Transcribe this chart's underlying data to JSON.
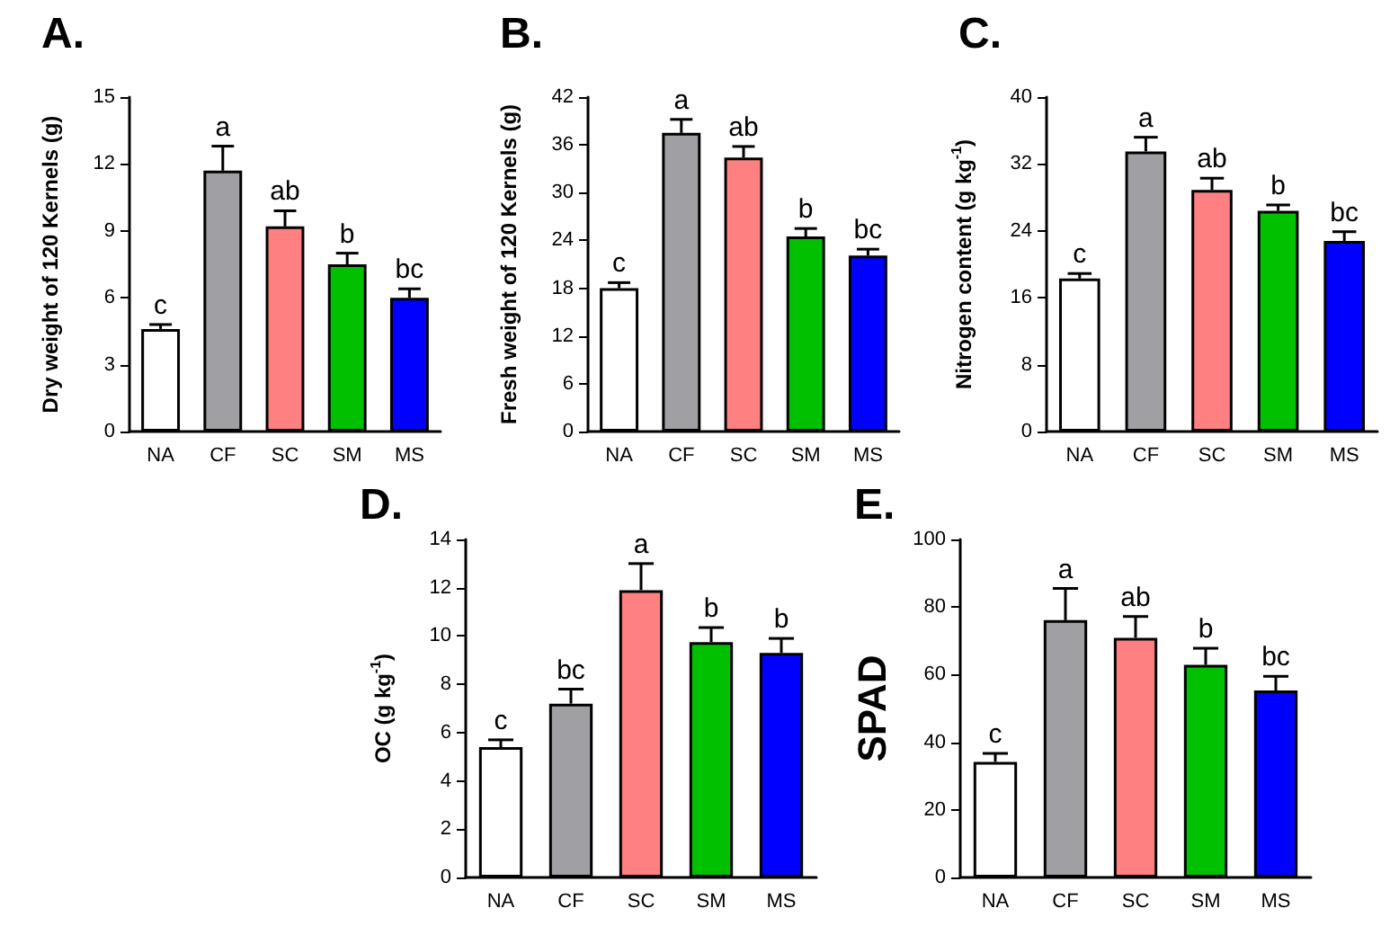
{
  "chart_data": [
    {
      "type": "bar",
      "title": "A.",
      "ylabel": "Dry weight of 120 Kernels (g)",
      "categories": [
        "NA",
        "CF",
        "SC",
        "SM",
        "MS"
      ],
      "values": [
        4.6,
        11.7,
        9.2,
        7.5,
        6.0
      ],
      "colors": [
        "#ffffff",
        "#a0a0a4",
        "#ff8080",
        "#00c000",
        "#0000ff"
      ],
      "errors": [
        [
          4.6,
          4.8
        ],
        [
          11.7,
          12.8
        ],
        [
          9.2,
          9.9
        ],
        [
          7.5,
          8.0
        ],
        [
          6.0,
          6.4
        ]
      ],
      "ylim": [
        0,
        15
      ],
      "yticks": [
        0,
        3,
        6,
        9,
        12,
        15
      ],
      "grid": false,
      "annotations": [
        {
          "text": "c",
          "x": "NA",
          "y": 4.8
        },
        {
          "text": "a",
          "x": "CF",
          "y": 12.8
        },
        {
          "text": "ab",
          "x": "SC",
          "y": 9.9
        },
        {
          "text": "b",
          "x": "SM",
          "y": 8.0
        },
        {
          "text": "bc",
          "x": "MS",
          "y": 6.4
        }
      ]
    },
    {
      "type": "bar",
      "title": "B.",
      "ylabel": "Fresh weight of 120 Kernels (g)",
      "categories": [
        "NA",
        "CF",
        "SC",
        "SM",
        "MS"
      ],
      "values": [
        18.0,
        37.5,
        34.4,
        24.5,
        22.1
      ],
      "colors": [
        "#ffffff",
        "#a0a0a4",
        "#ff8080",
        "#00c000",
        "#0000ff"
      ],
      "errors": [
        [
          18.0,
          18.7
        ],
        [
          37.5,
          39.2
        ],
        [
          34.4,
          35.8
        ],
        [
          24.5,
          25.5
        ],
        [
          22.1,
          22.9
        ]
      ],
      "ylim": [
        0,
        42
      ],
      "yticks": [
        0,
        6,
        12,
        18,
        24,
        30,
        36,
        42
      ],
      "grid": false,
      "annotations": [
        {
          "text": "c",
          "x": "NA",
          "y": 18.7
        },
        {
          "text": "a",
          "x": "CF",
          "y": 39.2
        },
        {
          "text": "ab",
          "x": "SC",
          "y": 35.8
        },
        {
          "text": "b",
          "x": "SM",
          "y": 25.5
        },
        {
          "text": "bc",
          "x": "MS",
          "y": 22.9
        }
      ]
    },
    {
      "type": "bar",
      "title": "C.",
      "ylabel": "Nitrogen content (g kg$^{-1}$)",
      "categories": [
        "NA",
        "CF",
        "SC",
        "SM",
        "MS"
      ],
      "values": [
        18.3,
        33.5,
        28.9,
        26.4,
        22.8
      ],
      "colors": [
        "#ffffff",
        "#a0a0a4",
        "#ff8080",
        "#00c000",
        "#0000ff"
      ],
      "errors": [
        [
          18.3,
          18.9
        ],
        [
          33.5,
          35.2
        ],
        [
          28.9,
          30.3
        ],
        [
          26.4,
          27.1
        ],
        [
          22.8,
          23.9
        ]
      ],
      "ylim": [
        0,
        40
      ],
      "yticks": [
        0,
        8,
        16,
        24,
        32,
        40
      ],
      "grid": false,
      "annotations": [
        {
          "text": "c",
          "x": "NA",
          "y": 18.9
        },
        {
          "text": "a",
          "x": "CF",
          "y": 35.2
        },
        {
          "text": "ab",
          "x": "SC",
          "y": 30.3
        },
        {
          "text": "b",
          "x": "SM",
          "y": 27.1
        },
        {
          "text": "bc",
          "x": "MS",
          "y": 23.9
        }
      ]
    },
    {
      "type": "bar",
      "title": "D.",
      "ylabel": "OC (g kg$^{-1}$)",
      "categories": [
        "NA",
        "CF",
        "SC",
        "SM",
        "MS"
      ],
      "values": [
        5.4,
        7.2,
        11.9,
        9.75,
        9.3
      ],
      "colors": [
        "#ffffff",
        "#a0a0a4",
        "#ff8080",
        "#00c000",
        "#0000ff"
      ],
      "errors": [
        [
          5.4,
          5.7
        ],
        [
          7.2,
          7.8
        ],
        [
          11.9,
          13.0
        ],
        [
          9.75,
          10.35
        ],
        [
          9.3,
          9.9
        ]
      ],
      "ylim": [
        0,
        14
      ],
      "yticks": [
        0,
        2,
        4,
        6,
        8,
        10,
        12,
        14
      ],
      "grid": false,
      "annotations": [
        {
          "text": "c",
          "x": "NA",
          "y": 5.7
        },
        {
          "text": "bc",
          "x": "CF",
          "y": 7.8
        },
        {
          "text": "a",
          "x": "SC",
          "y": 13.0
        },
        {
          "text": "b",
          "x": "SM",
          "y": 10.35
        },
        {
          "text": "b",
          "x": "MS",
          "y": 9.9
        }
      ]
    },
    {
      "type": "bar",
      "title": "E.",
      "ylabel": "SPAD",
      "categories": [
        "NA",
        "CF",
        "SC",
        "SM",
        "MS"
      ],
      "values": [
        34.2,
        76.1,
        70.9,
        62.9,
        55.3
      ],
      "colors": [
        "#ffffff",
        "#a0a0a4",
        "#ff8080",
        "#00c000",
        "#0000ff"
      ],
      "errors": [
        [
          34.2,
          36.7
        ],
        [
          76.1,
          85.5
        ],
        [
          70.9,
          77.2
        ],
        [
          62.9,
          67.8
        ],
        [
          55.3,
          59.5
        ]
      ],
      "ylim": [
        0,
        100
      ],
      "yticks": [
        0,
        20,
        40,
        60,
        80,
        100
      ],
      "grid": false,
      "annotations": [
        {
          "text": "c",
          "x": "NA",
          "y": 36.7
        },
        {
          "text": "a",
          "x": "CF",
          "y": 85.5
        },
        {
          "text": "ab",
          "x": "SC",
          "y": 77.2
        },
        {
          "text": "b",
          "x": "SM",
          "y": 67.8
        },
        {
          "text": "bc",
          "x": "MS",
          "y": 59.5
        }
      ]
    }
  ]
}
